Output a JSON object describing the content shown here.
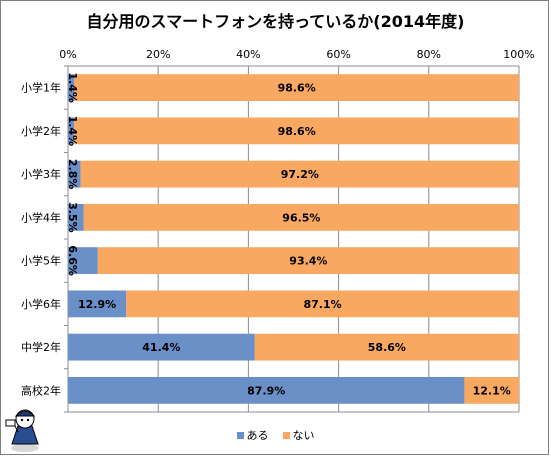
{
  "chart_data": {
    "type": "bar",
    "orientation": "horizontal",
    "stacked": true,
    "title": "自分用のスマートフォンを持っているか(2014年度)",
    "categories": [
      "小学1年",
      "小学2年",
      "小学3年",
      "小学4年",
      "小学5年",
      "小学6年",
      "中学2年",
      "高校2年"
    ],
    "series": [
      {
        "name": "ある",
        "color": "#6b8fc7",
        "values": [
          1.4,
          1.4,
          2.8,
          3.5,
          6.6,
          12.9,
          41.4,
          87.9
        ],
        "labels": [
          "1.4%",
          "1.4%",
          "2.8%",
          "3.5%",
          "6.6%",
          "12.9%",
          "41.4%",
          "87.9%"
        ]
      },
      {
        "name": "ない",
        "color": "#f9a862",
        "values": [
          98.6,
          98.6,
          97.2,
          96.5,
          93.4,
          87.1,
          58.6,
          12.1
        ],
        "labels": [
          "98.6%",
          "98.6%",
          "97.2%",
          "96.5%",
          "93.4%",
          "87.1%",
          "58.6%",
          "12.1%"
        ]
      }
    ],
    "xlim": [
      0,
      100
    ],
    "x_ticks": [
      "0%",
      "20%",
      "40%",
      "60%",
      "80%",
      "100%"
    ],
    "grid": true,
    "legend_position": "bottom"
  }
}
